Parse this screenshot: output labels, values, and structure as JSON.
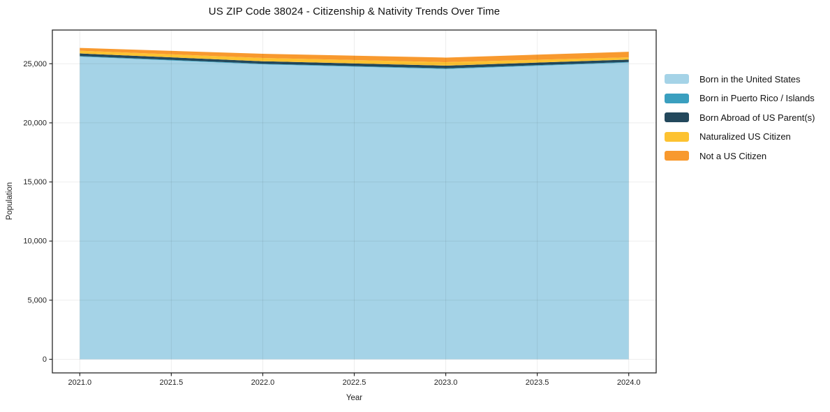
{
  "figure": {
    "background": "#ffffff",
    "frame_color": "#262626",
    "grid_color": "rgba(0,0,0,0.07)"
  },
  "chart_data": {
    "type": "area",
    "stacked": true,
    "title": "US ZIP Code 38024 - Citizenship & Nativity Trends Over Time",
    "xlabel": "Year",
    "ylabel": "Population",
    "x": [
      2021,
      2022,
      2023,
      2024
    ],
    "series": [
      {
        "name": "Born in the United States",
        "color": "#a5d3e7",
        "values": [
          25600,
          24950,
          24550,
          25100
        ]
      },
      {
        "name": "Born in Puerto Rico / Islands",
        "color": "#3a9fbf",
        "values": [
          50,
          50,
          60,
          50
        ]
      },
      {
        "name": "Born Abroad of US Parent(s)",
        "color": "#23485c",
        "values": [
          220,
          210,
          230,
          200
        ]
      },
      {
        "name": "Naturalized US Citizen",
        "color": "#fdc231",
        "values": [
          230,
          280,
          290,
          190
        ]
      },
      {
        "name": "Not a US Citizen",
        "color": "#f8992e",
        "values": [
          240,
          350,
          390,
          470
        ]
      }
    ],
    "xlim": [
      2020.85,
      2024.15
    ],
    "ylim": [
      -1150,
      27850
    ],
    "xticks": [
      2021.0,
      2021.5,
      2022.0,
      2022.5,
      2023.0,
      2023.5,
      2024.0
    ],
    "xtick_labels": [
      "2021.0",
      "2021.5",
      "2022.0",
      "2022.5",
      "2023.0",
      "2023.5",
      "2024.0"
    ],
    "yticks": [
      0,
      5000,
      10000,
      15000,
      20000,
      25000
    ],
    "ytick_labels": [
      "0",
      "5,000",
      "10,000",
      "15,000",
      "20,000",
      "25,000"
    ],
    "grid": true,
    "legend_position": "right"
  }
}
